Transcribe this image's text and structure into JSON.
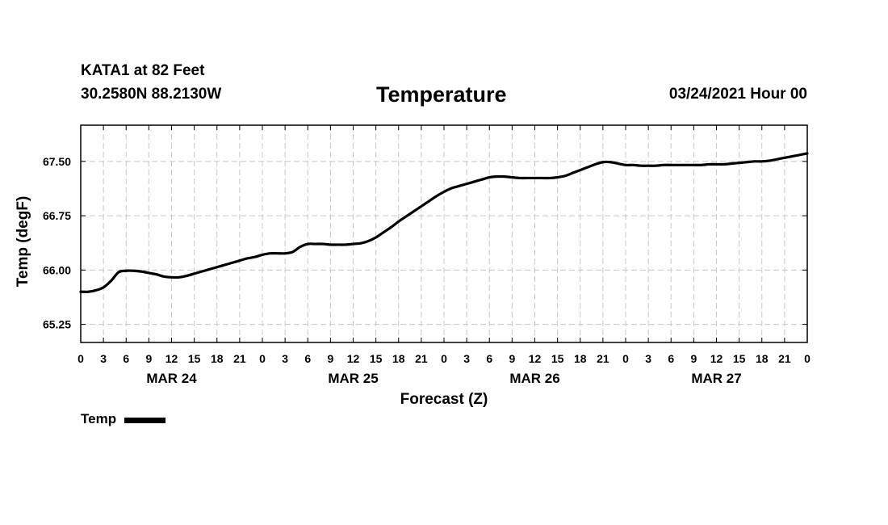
{
  "header": {
    "station": "KATA1 at 82 Feet",
    "coords": "30.2580N 88.2130W",
    "title": "Temperature",
    "datetime": "03/24/2021 Hour 00"
  },
  "legend": {
    "label": "Temp",
    "color": "#000000"
  },
  "chart_data": {
    "type": "line",
    "title": "Temperature",
    "xlabel": "Forecast (Z)",
    "ylabel": "Temp (degF)",
    "ylim": [
      65.0,
      68.0
    ],
    "yticks": [
      65.25,
      66.0,
      66.75,
      67.5
    ],
    "ytick_labels": [
      "65.25",
      "66.00",
      "66.75",
      "67.50"
    ],
    "xlim": [
      0,
      96
    ],
    "xticks": [
      0,
      3,
      6,
      9,
      12,
      15,
      18,
      21,
      24,
      27,
      30,
      33,
      36,
      39,
      42,
      45,
      48,
      51,
      54,
      57,
      60,
      63,
      66,
      69,
      72,
      75,
      78,
      81,
      84,
      87,
      90,
      93,
      96
    ],
    "xtick_labels": [
      "0",
      "3",
      "6",
      "9",
      "12",
      "15",
      "18",
      "21",
      "0",
      "3",
      "6",
      "9",
      "12",
      "15",
      "18",
      "21",
      "0",
      "3",
      "6",
      "9",
      "12",
      "15",
      "18",
      "21",
      "0",
      "3",
      "6",
      "9",
      "12",
      "15",
      "18",
      "21",
      "0"
    ],
    "day_labels": [
      {
        "text": "MAR 24",
        "hour": 12
      },
      {
        "text": "MAR 25",
        "hour": 36
      },
      {
        "text": "MAR 26",
        "hour": 60
      },
      {
        "text": "MAR 27",
        "hour": 84
      }
    ],
    "grid": true,
    "series": [
      {
        "name": "Temp",
        "color": "#000000",
        "x": [
          0,
          1,
          2,
          3,
          4,
          5,
          6,
          7,
          8,
          9,
          10,
          11,
          12,
          13,
          14,
          15,
          16,
          17,
          18,
          19,
          20,
          21,
          22,
          23,
          24,
          25,
          26,
          27,
          28,
          29,
          30,
          31,
          32,
          33,
          34,
          35,
          36,
          37,
          38,
          39,
          40,
          41,
          42,
          43,
          44,
          45,
          46,
          47,
          48,
          49,
          50,
          51,
          52,
          53,
          54,
          55,
          56,
          57,
          58,
          59,
          60,
          61,
          62,
          63,
          64,
          65,
          66,
          67,
          68,
          69,
          70,
          71,
          72,
          73,
          74,
          75,
          76,
          77,
          78,
          79,
          80,
          81,
          82,
          83,
          84,
          85,
          86,
          87,
          88,
          89,
          90,
          91,
          92,
          93,
          94,
          95,
          96
        ],
        "values": [
          65.7,
          65.7,
          65.72,
          65.76,
          65.85,
          65.97,
          65.99,
          65.99,
          65.98,
          65.96,
          65.94,
          65.91,
          65.9,
          65.9,
          65.92,
          65.95,
          65.98,
          66.01,
          66.04,
          66.07,
          66.1,
          66.13,
          66.16,
          66.18,
          66.21,
          66.23,
          66.23,
          66.23,
          66.25,
          66.32,
          66.36,
          66.36,
          66.36,
          66.35,
          66.35,
          66.35,
          66.36,
          66.37,
          66.4,
          66.45,
          66.52,
          66.59,
          66.67,
          66.74,
          66.81,
          66.88,
          66.95,
          67.02,
          67.08,
          67.13,
          67.16,
          67.19,
          67.22,
          67.25,
          67.28,
          67.29,
          67.29,
          67.28,
          67.27,
          67.27,
          67.27,
          67.27,
          67.27,
          67.28,
          67.3,
          67.34,
          67.38,
          67.42,
          67.46,
          67.49,
          67.49,
          67.47,
          67.45,
          67.45,
          67.44,
          67.44,
          67.44,
          67.45,
          67.45,
          67.45,
          67.45,
          67.45,
          67.45,
          67.46,
          67.46,
          67.46,
          67.47,
          67.48,
          67.49,
          67.5,
          67.5,
          67.51,
          67.53,
          67.55,
          67.57,
          67.59,
          67.61
        ]
      }
    ]
  }
}
